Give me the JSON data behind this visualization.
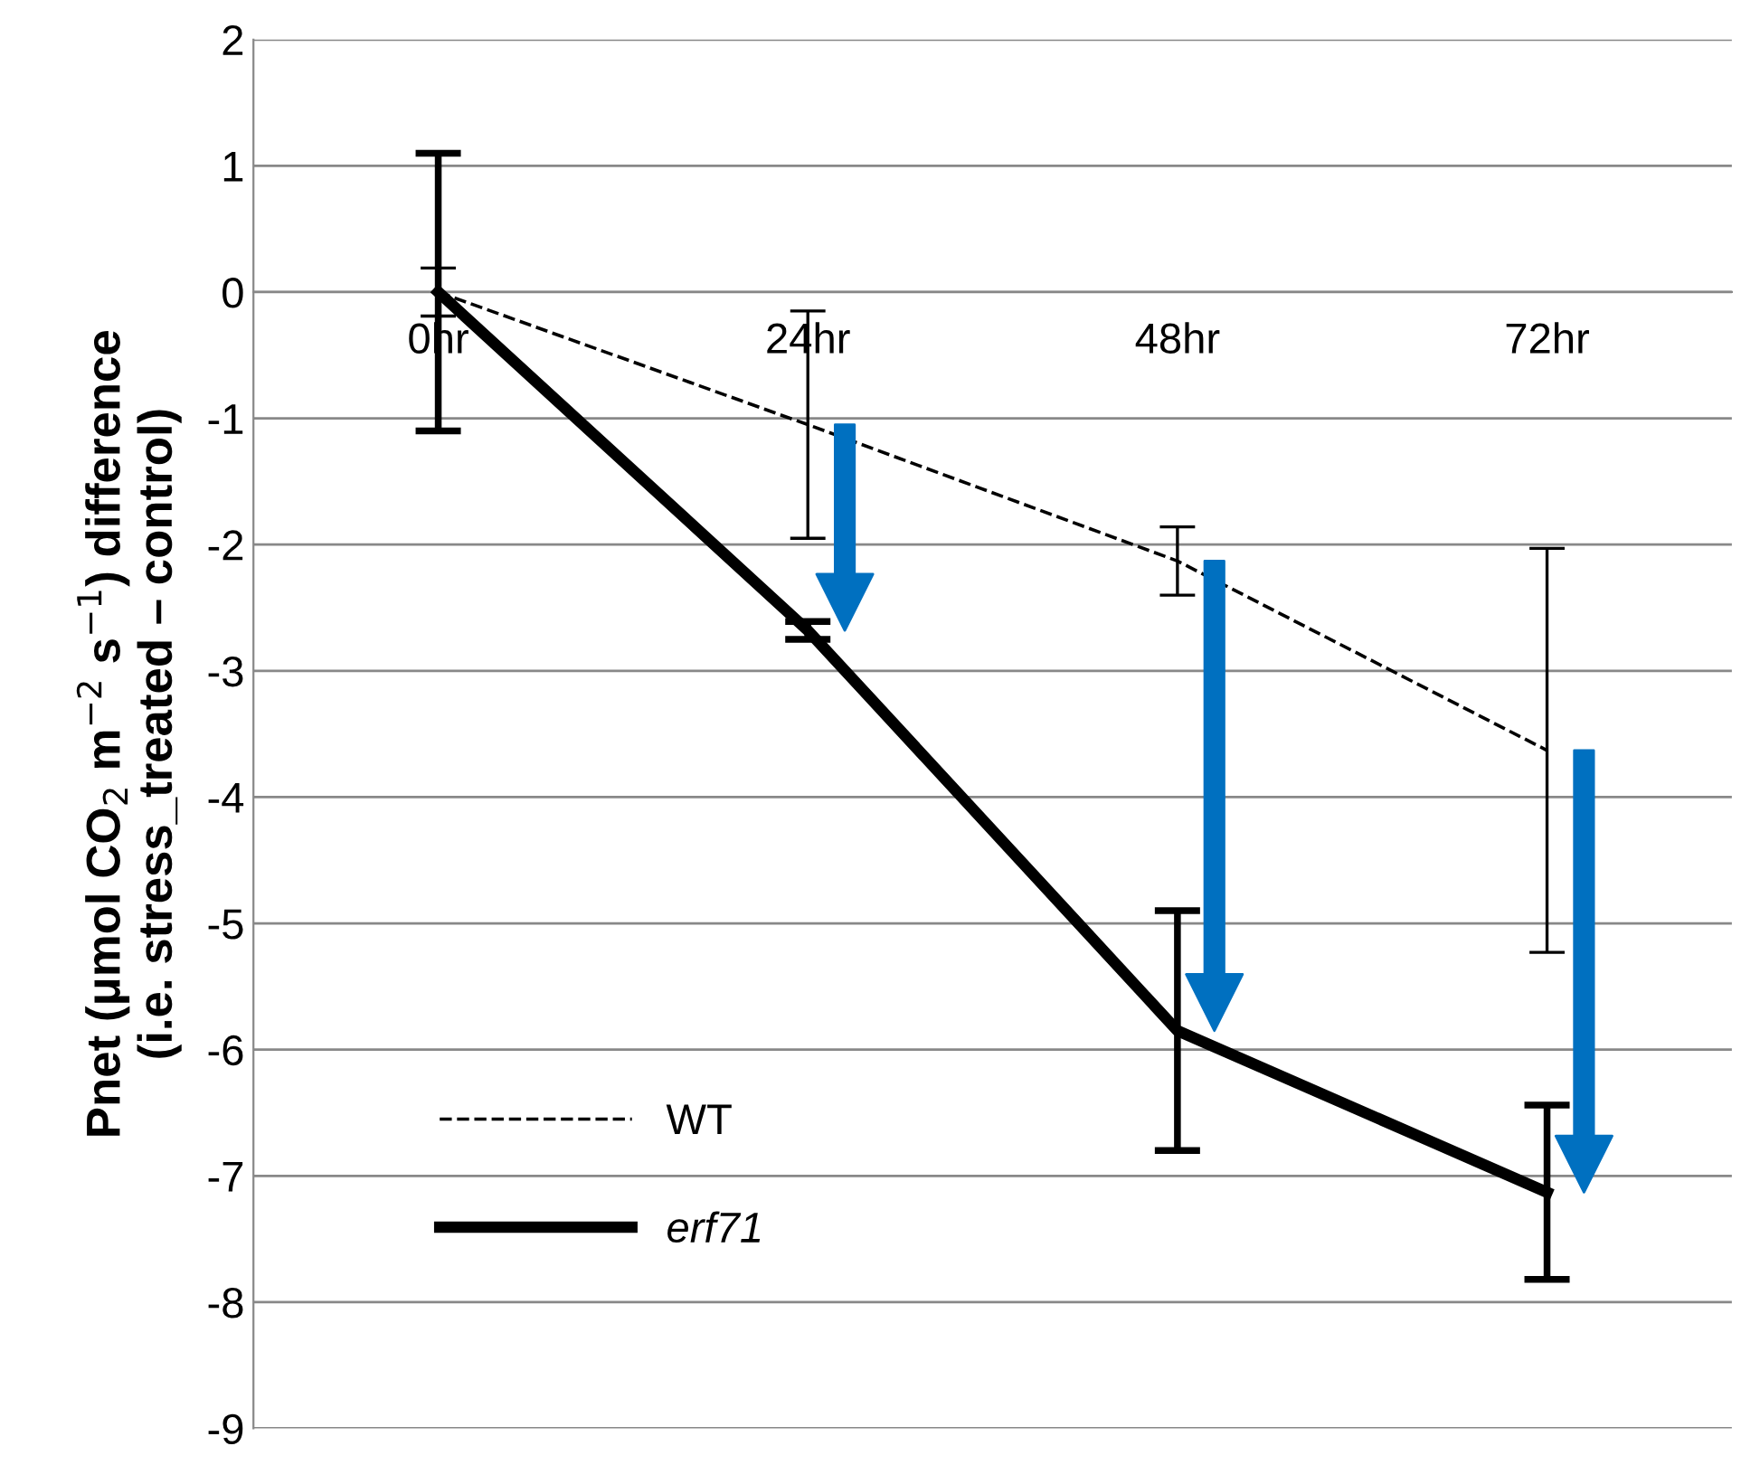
{
  "chart_data": {
    "type": "line",
    "ylabel": "Pnet (μmol CO$_{2}$ m$^{−2}$ s$^{−1}$) difference\n(i.e. stress_treated – control)",
    "categories": [
      "0hr",
      "24hr",
      "48hr",
      "72hr"
    ],
    "series": [
      {
        "name": "WT",
        "color": "#000000",
        "line_style": "dashed",
        "values": [
          0,
          -1.05,
          -2.13,
          -3.63
        ],
        "errors": [
          0.19,
          0.9,
          0.27,
          1.6
        ]
      },
      {
        "name": "erf71",
        "color": "#000000",
        "line_style": "solid",
        "values": [
          0,
          -2.68,
          -5.85,
          -7.13
        ],
        "errors": [
          1.1,
          0.07,
          0.95,
          0.69
        ]
      }
    ],
    "ylim": [
      -9,
      2
    ],
    "yticks": [
      -9,
      -8,
      -7,
      -6,
      -5,
      -4,
      -3,
      -2,
      -1,
      0,
      1,
      2
    ],
    "grid": "y",
    "legend": "bottom left",
    "marker": "none"
  }
}
